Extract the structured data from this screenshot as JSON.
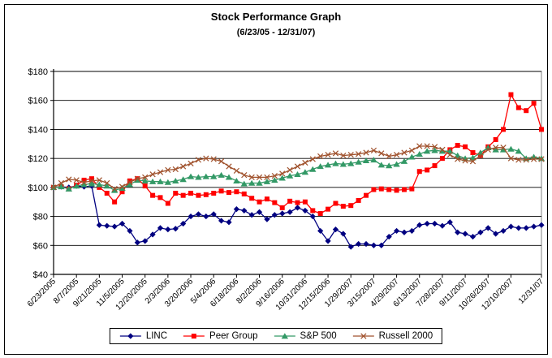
{
  "chart_data": {
    "type": "line",
    "title": "Stock Performance Graph",
    "subtitle": "(6/23/05 - 12/31/07)",
    "ylabel": "",
    "xlabel": "",
    "ylim": [
      40,
      180
    ],
    "y_ticks": [
      {
        "value": 40,
        "label": "$40"
      },
      {
        "value": 60,
        "label": "$60"
      },
      {
        "value": 80,
        "label": "$80"
      },
      {
        "value": 100,
        "label": "$100"
      },
      {
        "value": 120,
        "label": "$120"
      },
      {
        "value": 140,
        "label": "$140"
      },
      {
        "value": 160,
        "label": "$160"
      },
      {
        "value": 180,
        "label": "$180"
      }
    ],
    "x_labels": [
      "6/23/2005",
      "8/7/2005",
      "9/21/2005",
      "11/5/2005",
      "12/20/2005",
      "2/3/2006",
      "3/20/2006",
      "5/4/2006",
      "6/18/2006",
      "8/2/2006",
      "9/16/2006",
      "10/31/2006",
      "12/15/2006",
      "1/29/2007",
      "3/15/2007",
      "4/29/2007",
      "6/13/2007",
      "7/28/2007",
      "9/11/2007",
      "10/26/2007",
      "12/10/2007",
      "12/31/07"
    ],
    "tick_indices": [
      0,
      3,
      6,
      9,
      12,
      15,
      18,
      21,
      24,
      27,
      30,
      33,
      36,
      39,
      42,
      45,
      48,
      51,
      54,
      57,
      60,
      64
    ],
    "grid": "horizontal",
    "legend_position": "bottom",
    "series": [
      {
        "name": "LINC",
        "color": "#000080",
        "marker": "diamond",
        "values": [
          100,
          100.5,
          100,
          101,
          100.5,
          101,
          74,
          73.5,
          73,
          75,
          70,
          62,
          63,
          67.5,
          72,
          71,
          71.5,
          75,
          80,
          81.5,
          80,
          81.5,
          77,
          76,
          85,
          84,
          81,
          83,
          78,
          81,
          82,
          83,
          86,
          84,
          80,
          70,
          63,
          71,
          68,
          59,
          61,
          61,
          60,
          60,
          66,
          70,
          69,
          70,
          74,
          75,
          75,
          73.5,
          76,
          69,
          68,
          66,
          69,
          72,
          68,
          70,
          73,
          72,
          72,
          73,
          74
        ]
      },
      {
        "name": "Peer Group",
        "color": "#FF0000",
        "marker": "square",
        "values": [
          100,
          100.5,
          99,
          101.5,
          105,
          106,
          100,
          96,
          90,
          97,
          104.5,
          106,
          101,
          94.5,
          93,
          89,
          96,
          94.5,
          96,
          94.5,
          95,
          96,
          97.5,
          96.5,
          97,
          95.5,
          92.5,
          90,
          92,
          89.5,
          86,
          90.5,
          89.5,
          90,
          84,
          82,
          85,
          89,
          87,
          87.5,
          91,
          94.5,
          98.5,
          99,
          98.5,
          98,
          98.5,
          99,
          111,
          112,
          115,
          120,
          126,
          129,
          128,
          124,
          122,
          128,
          133,
          140,
          164,
          155,
          153,
          158,
          140
        ]
      },
      {
        "name": "S&P 500",
        "color": "#339966",
        "marker": "triangle",
        "values": [
          100,
          100.5,
          99,
          101,
          102,
          102.5,
          102,
          101,
          98,
          99.5,
          102,
          105,
          104.5,
          104,
          104,
          103.5,
          104.5,
          105.5,
          107.5,
          107,
          107.5,
          107.5,
          108.5,
          107,
          104.5,
          102.5,
          103,
          103,
          104,
          105,
          106.5,
          108,
          109,
          110.5,
          112.5,
          114.5,
          115.5,
          116.5,
          116,
          116.5,
          117.5,
          118.5,
          119,
          115.5,
          115,
          116,
          118,
          121,
          123,
          125,
          125.5,
          125,
          125,
          122,
          120,
          120.5,
          124,
          127.5,
          126,
          126,
          126.5,
          125,
          120,
          121,
          120
        ]
      },
      {
        "name": "Russell 2000",
        "color": "#A0522D",
        "marker": "x",
        "values": [
          100,
          103,
          105.5,
          105,
          103.5,
          104.5,
          105,
          103,
          99,
          100.5,
          103.5,
          106,
          107,
          109,
          110.5,
          112,
          112.5,
          114.5,
          116.5,
          119,
          120,
          119.5,
          118,
          114.5,
          111.5,
          108.5,
          107,
          107,
          107,
          108,
          109.5,
          112,
          114.5,
          117,
          119.5,
          121.5,
          122.5,
          123.5,
          122,
          122.5,
          123,
          124,
          125.5,
          123.5,
          121.5,
          122.5,
          124,
          125.5,
          128.5,
          128.5,
          128,
          126,
          122.5,
          119.5,
          118.5,
          118,
          122,
          126,
          127.5,
          127.5,
          120,
          119,
          119,
          119.5,
          119.5
        ]
      }
    ],
    "axis_color": "#000000",
    "plot_border_color": "#808080"
  }
}
